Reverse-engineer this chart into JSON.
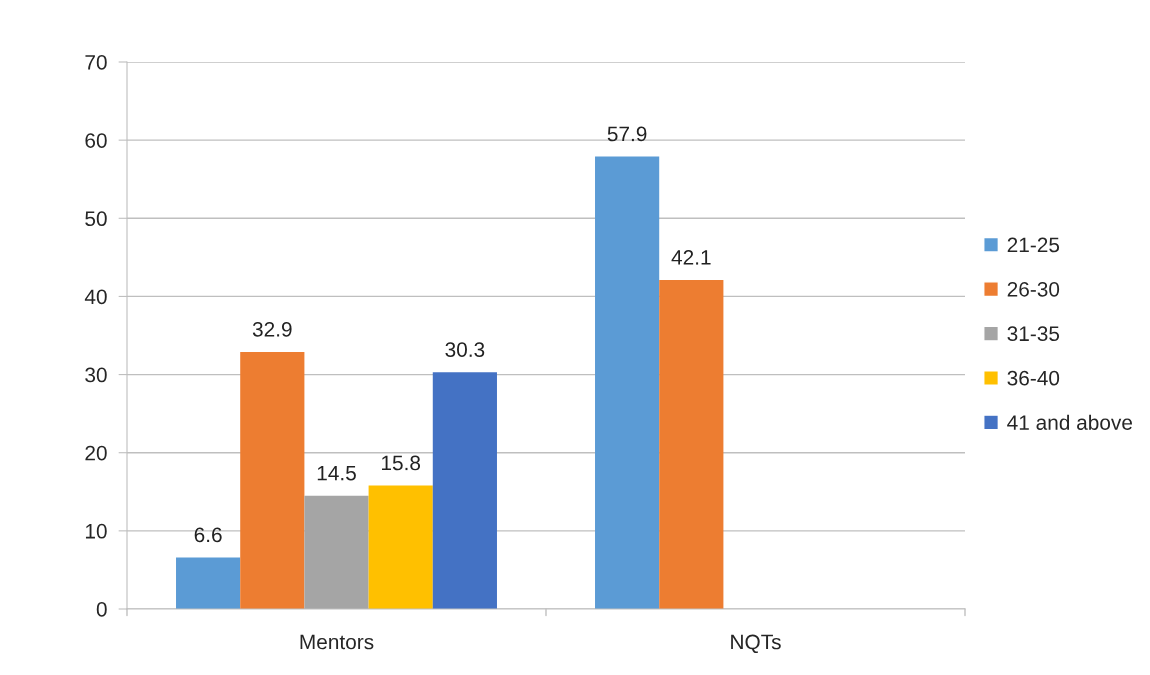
{
  "chart_data": {
    "type": "bar",
    "categories": [
      "Mentors",
      "NQTs"
    ],
    "series": [
      {
        "name": "21-25",
        "color": "#5b9bd5",
        "values": [
          6.6,
          57.9
        ]
      },
      {
        "name": "26-30",
        "color": "#ed7d31",
        "values": [
          32.9,
          42.1
        ]
      },
      {
        "name": "31-35",
        "color": "#a5a5a5",
        "values": [
          14.5,
          null
        ]
      },
      {
        "name": "36-40",
        "color": "#ffc000",
        "values": [
          15.8,
          null
        ]
      },
      {
        "name": "41 and above",
        "color": "#4472c4",
        "values": [
          30.3,
          null
        ]
      }
    ],
    "ylim": [
      0,
      70
    ],
    "yticks": [
      0,
      10,
      20,
      30,
      40,
      50,
      60,
      70
    ],
    "grid": "y",
    "legend": "right",
    "data_labels": true
  }
}
